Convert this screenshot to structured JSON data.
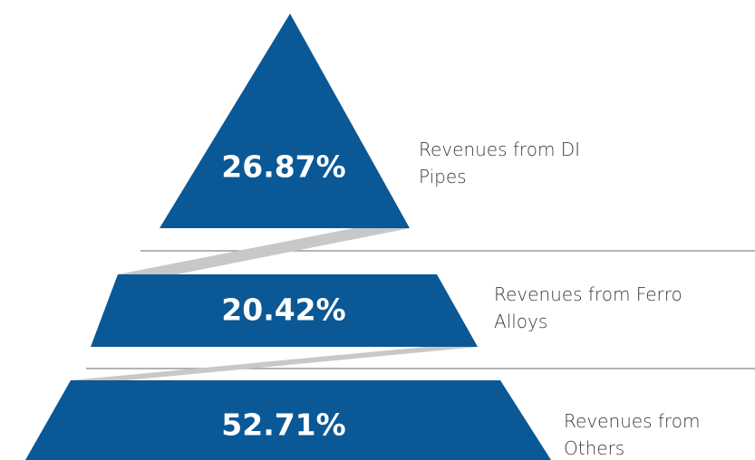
{
  "chart_data": {
    "type": "pyramid",
    "categories": [
      "Revenues from DI Pipes",
      "Revenues from Ferro Alloys",
      "Revenues from Others"
    ],
    "values": [
      26.87,
      20.42,
      52.71
    ],
    "value_labels": [
      "26.87%",
      "20.42%",
      "52.71%"
    ],
    "color": "#0a5896"
  }
}
